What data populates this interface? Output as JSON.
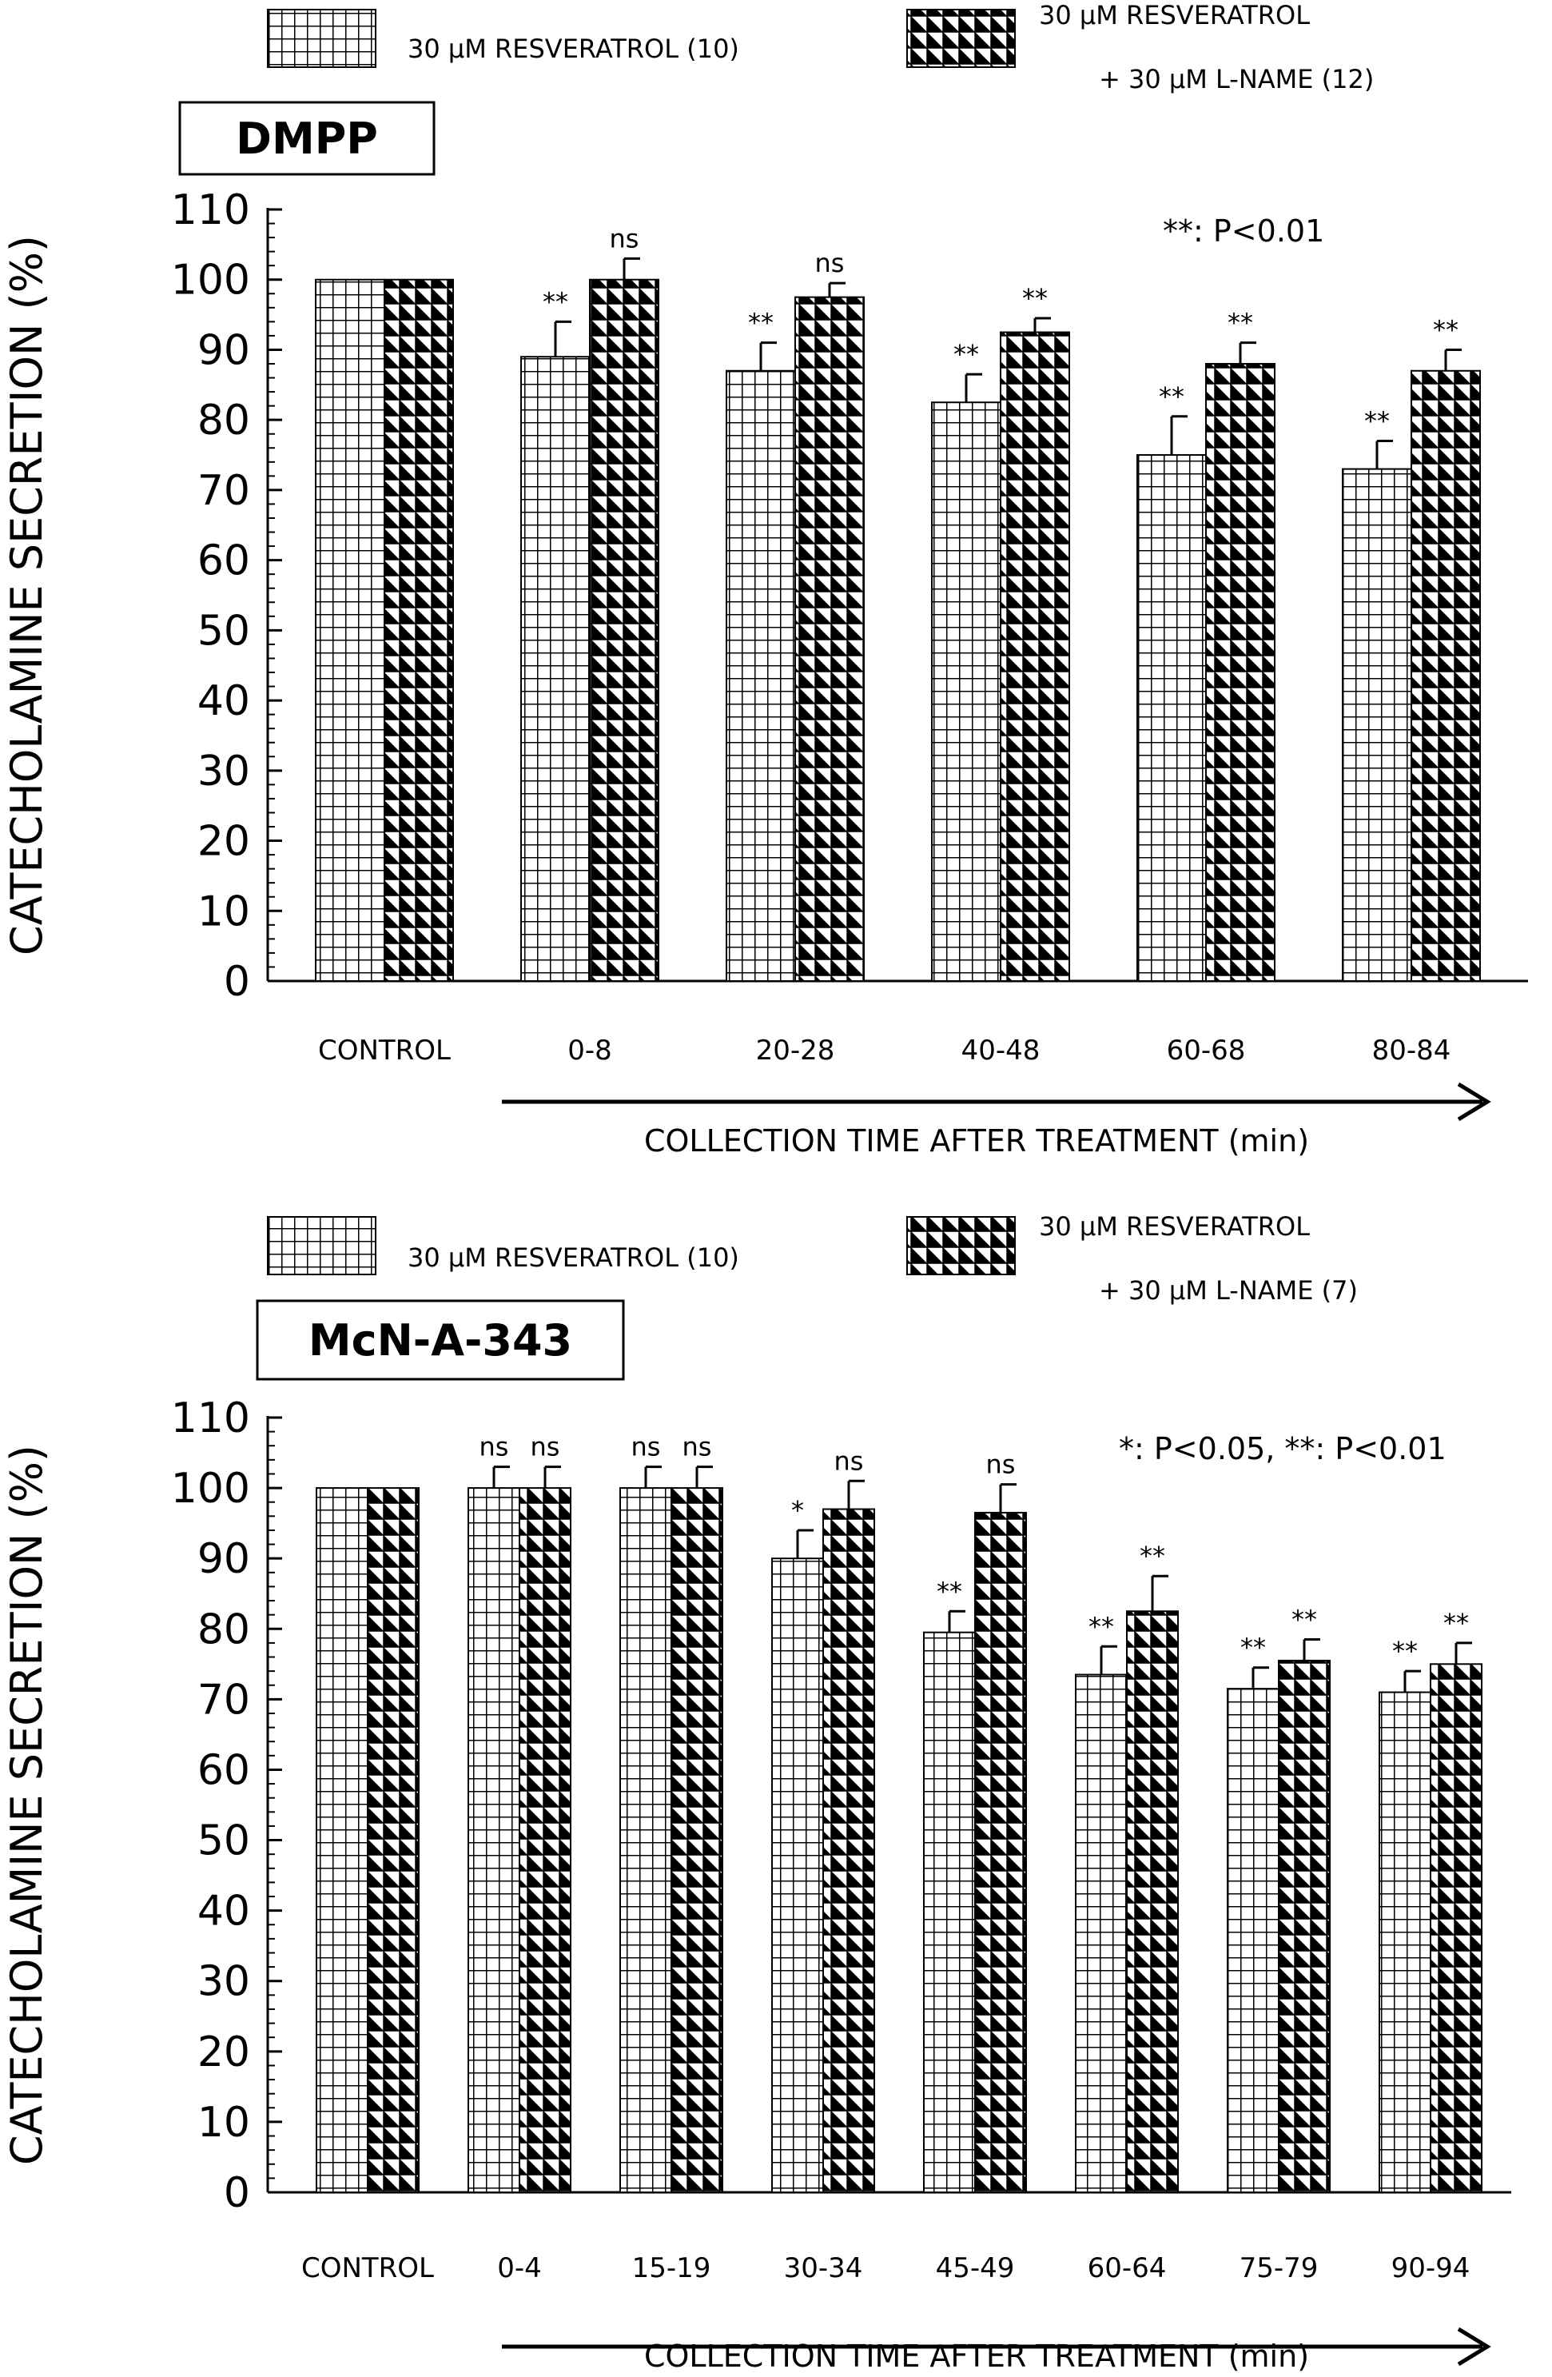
{
  "chart_data": [
    {
      "type": "bar",
      "title": "DMPP",
      "ylabel": "CATECHOLAMINE SECRETION (%)",
      "xlabel": "COLLECTION TIME AFTER TREATMENT (min)",
      "ylim": [
        0,
        110
      ],
      "yticks": [
        "0",
        "10",
        "20",
        "30",
        "40",
        "50",
        "60",
        "70",
        "80",
        "90",
        "100",
        "110"
      ],
      "annotation": "**: P<0.01",
      "categories": [
        "CONTROL",
        "0-8",
        "20-28",
        "40-48",
        "60-68",
        "80-84"
      ],
      "series": [
        {
          "name": "30 μM RESVERATROL (10)",
          "pattern": "grid",
          "values": [
            100,
            89,
            87,
            82.5,
            75,
            73
          ],
          "errors": [
            0,
            5,
            4,
            4,
            5.5,
            4
          ],
          "sig": [
            "",
            "**",
            "**",
            "**",
            "**",
            "**"
          ]
        },
        {
          "name": "30 μM RESVERATROL",
          "name_line2": "+ 30 μM L-NAME (12)",
          "pattern": "triangles",
          "values": [
            100,
            100,
            97.5,
            92.5,
            88,
            87
          ],
          "errors": [
            0,
            3,
            2,
            2,
            3,
            3
          ],
          "sig": [
            "",
            "ns",
            "ns",
            "**",
            "**",
            "**"
          ]
        }
      ]
    },
    {
      "type": "bar",
      "title": "McN-A-343",
      "ylabel": "CATECHOLAMINE SECRETION (%)",
      "xlabel": "COLLECTION TIME AFTER TREATMENT (min)",
      "ylim": [
        0,
        110
      ],
      "yticks": [
        "0",
        "10",
        "20",
        "30",
        "40",
        "50",
        "60",
        "70",
        "80",
        "90",
        "100",
        "110"
      ],
      "annotation": "*: P<0.05, **: P<0.01",
      "categories": [
        "CONTROL",
        "0-4",
        "15-19",
        "30-34",
        "45-49",
        "60-64",
        "75-79",
        "90-94"
      ],
      "series": [
        {
          "name": "30 μM RESVERATROL (10)",
          "pattern": "grid",
          "values": [
            100,
            100,
            100,
            90,
            79.5,
            73.5,
            71.5,
            71
          ],
          "errors": [
            0,
            3,
            3,
            4,
            3,
            4,
            3,
            3
          ],
          "sig": [
            "",
            "ns",
            "ns",
            "*",
            "**",
            "**",
            "**",
            "**"
          ]
        },
        {
          "name": "30 μM RESVERATROL",
          "name_line2": "+ 30 μM L-NAME (7)",
          "pattern": "triangles",
          "values": [
            100,
            100,
            100,
            97,
            96.5,
            82.5,
            75.5,
            75
          ],
          "errors": [
            0,
            3,
            3,
            4,
            4,
            5,
            3,
            3
          ],
          "sig": [
            "",
            "ns",
            "ns",
            "ns",
            "ns",
            "**",
            "**",
            "**"
          ]
        }
      ]
    }
  ]
}
